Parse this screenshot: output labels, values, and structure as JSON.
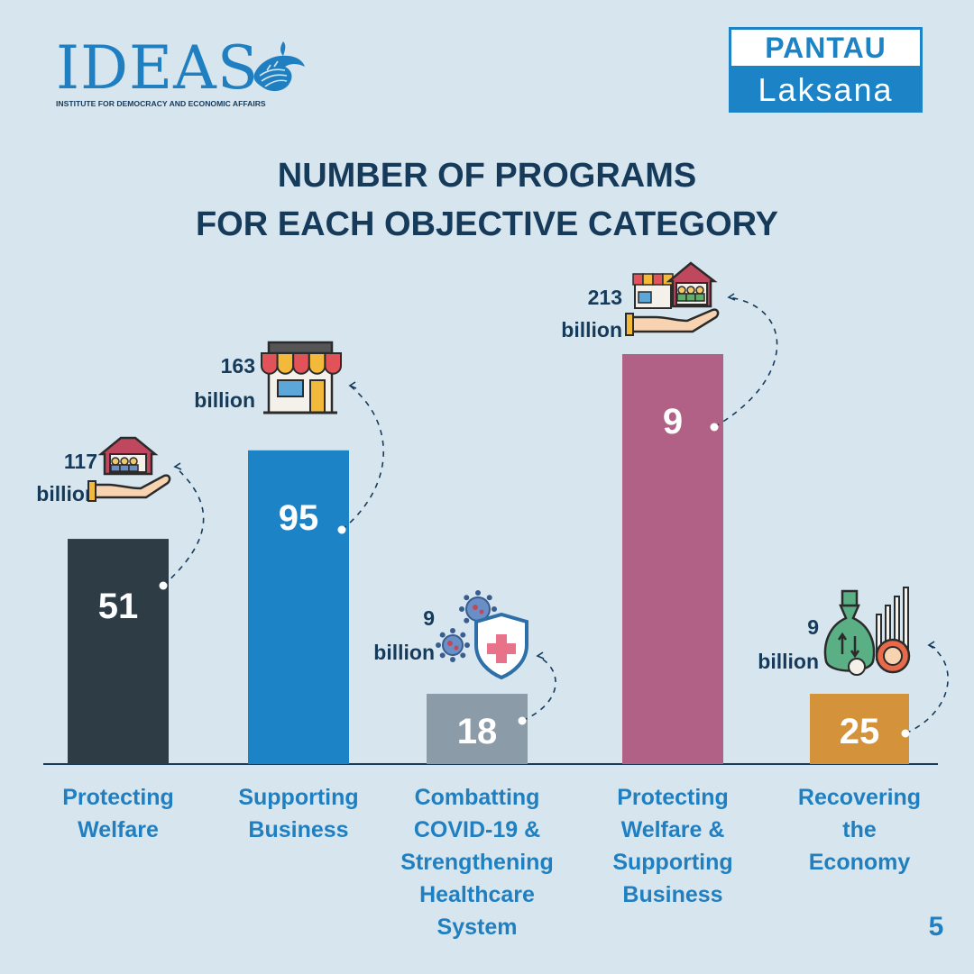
{
  "header": {
    "ideas_logo": {
      "wordmark": "IDEAS",
      "tagline": "INSTITUTE FOR DEMOCRACY AND ECONOMIC AFFAIRS"
    },
    "pantau_logo": {
      "line1": "PANTAU",
      "line2": "Laksana"
    }
  },
  "title_line1": "NUMBER OF PROGRAMS",
  "title_line2": "FOR EACH OBJECTIVE CATEGORY",
  "page_number": "5",
  "colors": {
    "background": "#d7e6ee",
    "title": "#163a5a",
    "category_label": "#1f7fc0",
    "amount_label": "#163a5a",
    "baseline": "#163a5a",
    "connector": "#163a5a"
  },
  "chart_data": {
    "type": "bar",
    "title": "NUMBER OF PROGRAMS FOR EACH OBJECTIVE CATEGORY",
    "categories": [
      [
        "Protecting",
        "Welfare"
      ],
      [
        "Supporting",
        "Business"
      ],
      [
        "Combatting",
        "COVID-19 &",
        "Strengthening",
        "Healthcare",
        "System"
      ],
      [
        "Protecting",
        "Welfare &",
        "Supporting",
        "Business"
      ],
      [
        "Recovering",
        "the",
        "Economy"
      ]
    ],
    "values": [
      51,
      95,
      18,
      9,
      25
    ],
    "bar_colors": [
      "#2e3c46",
      "#1c84c6",
      "#8b9ba7",
      "#b06185",
      "#d4923a"
    ],
    "allocation_labels": [
      [
        "117",
        "billion"
      ],
      [
        "163",
        "billion"
      ],
      [
        "9",
        "billion"
      ],
      [
        "213",
        "billion"
      ],
      [
        "9",
        "billion"
      ]
    ],
    "icons": [
      "house-hand-icon",
      "shop-icon",
      "virus-shield-icon",
      "shop-house-hand-icon",
      "money-bag-growth-icon"
    ],
    "bar_height_encodes": "allocation in billion",
    "allocation_values": [
      117,
      163,
      9,
      213,
      9
    ],
    "ylim": [
      0,
      213
    ],
    "xlabel": "",
    "ylabel": "",
    "grid": false,
    "legend": "none"
  }
}
